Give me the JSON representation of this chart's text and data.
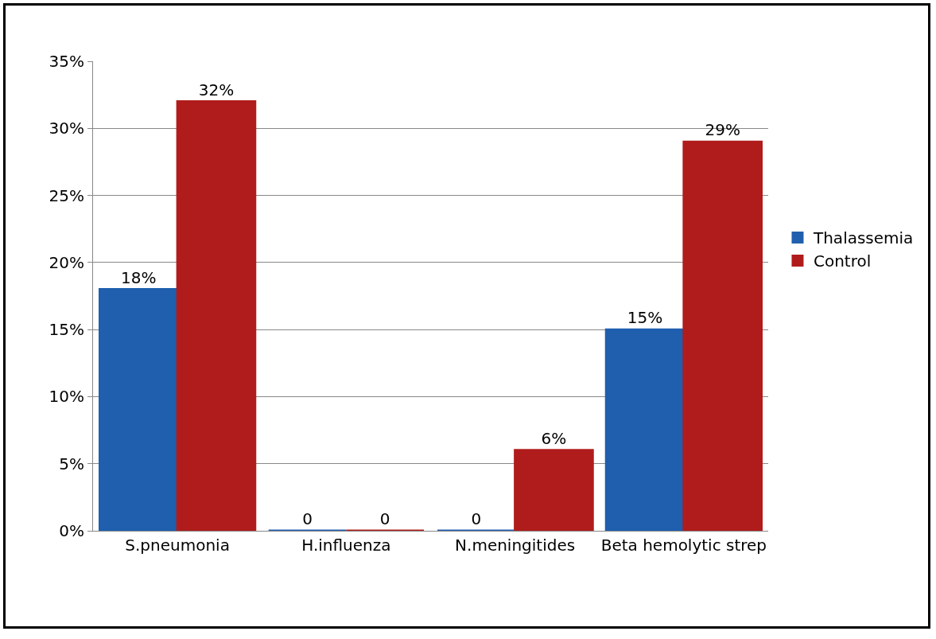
{
  "chart_data": {
    "type": "bar",
    "categories": [
      "S.pneumonia",
      "H.influenza",
      "N.meningitides",
      "Beta hemolytic strep"
    ],
    "series": [
      {
        "name": "Thalassemia",
        "color": "#1f5fae",
        "values": [
          18,
          0,
          0,
          15
        ],
        "value_labels": [
          "18%",
          "0",
          "0",
          "15%"
        ]
      },
      {
        "name": "Control",
        "color": "#b01c1c",
        "values": [
          32,
          0,
          6,
          29
        ],
        "value_labels": [
          "32%",
          "0",
          "6%",
          "29%"
        ]
      }
    ],
    "ylim": [
      0,
      35
    ],
    "yticks": [
      {
        "value": 0,
        "label": "0%"
      },
      {
        "value": 5,
        "label": "5%"
      },
      {
        "value": 10,
        "label": "10%"
      },
      {
        "value": 15,
        "label": "15%"
      },
      {
        "value": 20,
        "label": "20%"
      },
      {
        "value": 25,
        "label": "25%"
      },
      {
        "value": 30,
        "label": "30%"
      },
      {
        "value": 35,
        "label": "35%"
      }
    ],
    "grid": "y",
    "legend": "right"
  }
}
